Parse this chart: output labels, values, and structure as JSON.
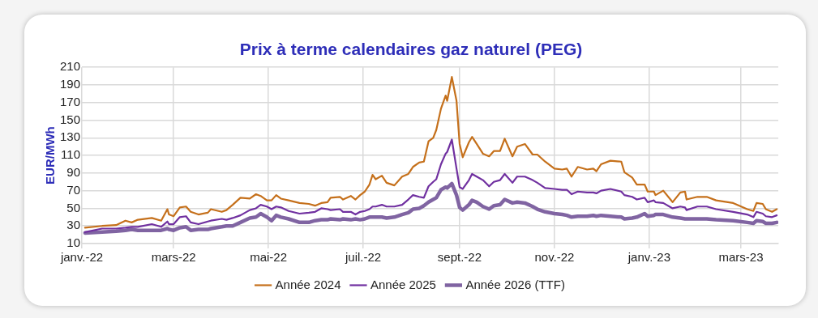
{
  "chart_data": {
    "type": "line",
    "title": "Prix à terme calendaires gaz naturel (PEG)",
    "ylabel": "EUR/MWh",
    "x": [
      "2022-01-03",
      "2022-01-14",
      "2022-01-23",
      "2022-01-29",
      "2022-02-02",
      "2022-02-06",
      "2022-02-15",
      "2022-02-21",
      "2022-02-25",
      "2022-02-26",
      "2022-03-01",
      "2022-03-05",
      "2022-03-09",
      "2022-03-12",
      "2022-03-17",
      "2022-03-23",
      "2022-03-25",
      "2022-04-01",
      "2022-04-04",
      "2022-04-08",
      "2022-04-13",
      "2022-04-19",
      "2022-04-23",
      "2022-04-26",
      "2022-04-30",
      "2022-05-03",
      "2022-05-06",
      "2022-05-09",
      "2022-05-14",
      "2022-05-21",
      "2022-05-27",
      "2022-05-31",
      "2022-06-04",
      "2022-06-08",
      "2022-06-10",
      "2022-06-16",
      "2022-06-18",
      "2022-06-23",
      "2022-06-26",
      "2022-06-29",
      "2022-07-02",
      "2022-07-05",
      "2022-07-07",
      "2022-07-09",
      "2022-07-13",
      "2022-07-16",
      "2022-07-21",
      "2022-07-26",
      "2022-07-30",
      "2022-08-02",
      "2022-08-06",
      "2022-08-09",
      "2022-08-12",
      "2022-08-15",
      "2022-08-17",
      "2022-08-20",
      "2022-08-23",
      "2022-08-24",
      "2022-08-27",
      "2022-08-30",
      "2022-09-01",
      "2022-09-03",
      "2022-09-07",
      "2022-09-09",
      "2022-09-12",
      "2022-09-16",
      "2022-09-20",
      "2022-09-23",
      "2022-09-27",
      "2022-09-30",
      "2022-10-05",
      "2022-10-08",
      "2022-10-13",
      "2022-10-18",
      "2022-10-21",
      "2022-10-26",
      "2022-11-01",
      "2022-11-06",
      "2022-11-09",
      "2022-11-12",
      "2022-11-16",
      "2022-11-22",
      "2022-11-26",
      "2022-11-28",
      "2022-12-01",
      "2022-12-07",
      "2022-12-14",
      "2022-12-16",
      "2022-12-21",
      "2022-12-24",
      "2022-12-29",
      "2022-12-31",
      "2023-01-04",
      "2023-01-05",
      "2023-01-10",
      "2023-01-16",
      "2023-01-21",
      "2023-01-24",
      "2023-01-25",
      "2023-02-01",
      "2023-02-07",
      "2023-02-13",
      "2023-02-24",
      "2023-03-05",
      "2023-03-09",
      "2023-03-11",
      "2023-03-15",
      "2023-03-17",
      "2023-03-21",
      "2023-03-24"
    ],
    "series": [
      {
        "name": "Année 2024",
        "color": "#c5701b",
        "values": [
          28,
          30,
          31,
          36,
          34,
          37,
          39,
          36,
          49,
          43,
          41,
          51,
          52,
          46,
          43,
          45,
          49,
          46,
          48,
          54,
          62,
          61,
          66,
          64,
          59,
          59,
          65,
          61,
          59,
          56,
          55,
          53,
          56,
          57,
          62,
          63,
          60,
          64,
          60,
          65,
          69,
          77,
          88,
          83,
          87,
          79,
          76,
          86,
          89,
          97,
          102,
          103,
          126,
          130,
          139,
          163,
          178,
          172,
          199,
          172,
          123,
          108,
          125,
          131,
          123,
          112,
          109,
          115,
          115,
          129,
          109,
          120,
          123,
          111,
          111,
          103,
          95,
          94,
          95,
          86,
          97,
          94,
          95,
          92,
          100,
          104,
          103,
          91,
          85,
          77,
          77,
          69,
          69,
          65,
          70,
          57,
          68,
          69,
          60,
          63,
          63,
          59,
          56,
          49,
          47,
          56,
          55,
          49,
          46,
          49
        ]
      },
      {
        "name": "Année 2025",
        "color": "#7030a0",
        "values": [
          23,
          27,
          27,
          28,
          29,
          29,
          32,
          29,
          35,
          32,
          32,
          40,
          41,
          34,
          32,
          35,
          36,
          38,
          37,
          39,
          42,
          48,
          50,
          54,
          52,
          49,
          52,
          51,
          47,
          44,
          45,
          46,
          50,
          49,
          48,
          49,
          46,
          46,
          43,
          46,
          47,
          49,
          52,
          52,
          54,
          52,
          52,
          54,
          60,
          65,
          63,
          62,
          75,
          80,
          83,
          100,
          112,
          114,
          128,
          95,
          74,
          72,
          82,
          89,
          86,
          82,
          75,
          80,
          82,
          89,
          79,
          86,
          86,
          82,
          79,
          73,
          72,
          71,
          71,
          66,
          69,
          68,
          68,
          67,
          70,
          72,
          69,
          65,
          63,
          60,
          62,
          57,
          59,
          57,
          56,
          50,
          52,
          51,
          48,
          52,
          52,
          49,
          46,
          43,
          40,
          46,
          44,
          41,
          40,
          42
        ]
      },
      {
        "name": "Année 2026 (TTF)",
        "color": "#8064a2",
        "values": [
          22,
          23,
          24,
          25,
          26,
          25,
          25,
          25,
          27,
          26,
          25,
          28,
          29,
          25,
          26,
          26,
          27,
          29,
          30,
          30,
          34,
          39,
          40,
          44,
          40,
          36,
          42,
          40,
          38,
          34,
          34,
          36,
          37,
          37,
          38,
          37,
          38,
          37,
          38,
          37,
          38,
          40,
          40,
          40,
          40,
          39,
          40,
          43,
          45,
          49,
          50,
          53,
          57,
          60,
          62,
          71,
          74,
          73,
          78,
          65,
          51,
          48,
          54,
          59,
          57,
          52,
          49,
          53,
          54,
          60,
          56,
          57,
          56,
          52,
          49,
          46,
          44,
          43,
          42,
          40,
          41,
          41,
          42,
          41,
          42,
          41,
          40,
          38,
          39,
          40,
          44,
          41,
          42,
          43,
          43,
          40,
          39,
          38,
          38,
          38,
          38,
          37,
          36,
          34,
          33,
          36,
          35,
          33,
          33,
          34
        ]
      }
    ],
    "xlim": [
      "2022-01-01",
      "2023-03-25"
    ],
    "xticks": [
      {
        "value": "2022-01-01",
        "label": "janv.-22"
      },
      {
        "value": "2022-03-01",
        "label": "mars-22"
      },
      {
        "value": "2022-05-01",
        "label": "mai-22"
      },
      {
        "value": "2022-07-01",
        "label": "juil.-22"
      },
      {
        "value": "2022-09-01",
        "label": "sept.-22"
      },
      {
        "value": "2022-11-01",
        "label": "nov.-22"
      },
      {
        "value": "2023-01-01",
        "label": "janv.-23"
      },
      {
        "value": "2023-03-01",
        "label": "mars-23"
      }
    ],
    "ylim": [
      10,
      210
    ],
    "yticks": [
      10,
      30,
      50,
      70,
      90,
      110,
      130,
      150,
      170,
      190,
      210
    ],
    "grid": true,
    "legend": "bottom",
    "marker": "none",
    "line_style": "solid"
  }
}
